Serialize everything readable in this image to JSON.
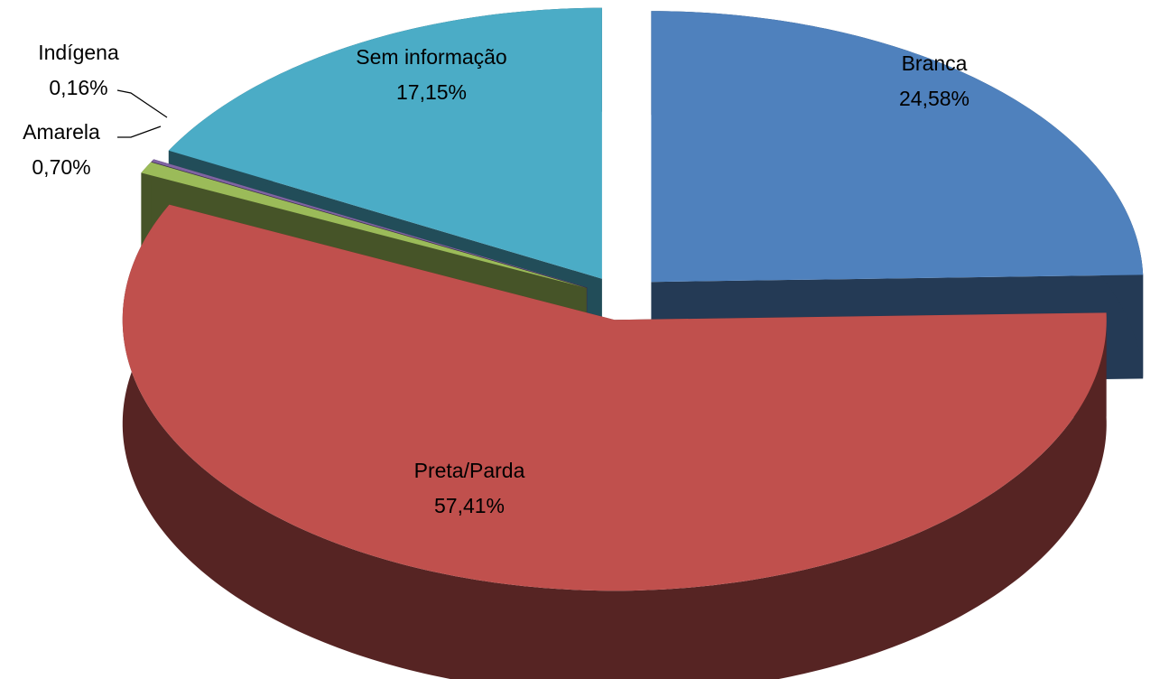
{
  "chart_data": {
    "type": "pie",
    "categories": [
      "Branca",
      "Preta/Parda",
      "Amarela",
      "Indígena",
      "Sem informação"
    ],
    "values": [
      24.58,
      57.41,
      0.7,
      0.16,
      17.15
    ],
    "value_labels": [
      "24,58%",
      "57,41%",
      "0,70%",
      "0,16%",
      "17,15%"
    ],
    "colors": [
      "#4f81bd",
      "#c0504d",
      "#9bbb59",
      "#8064a2",
      "#4bacc6"
    ]
  }
}
